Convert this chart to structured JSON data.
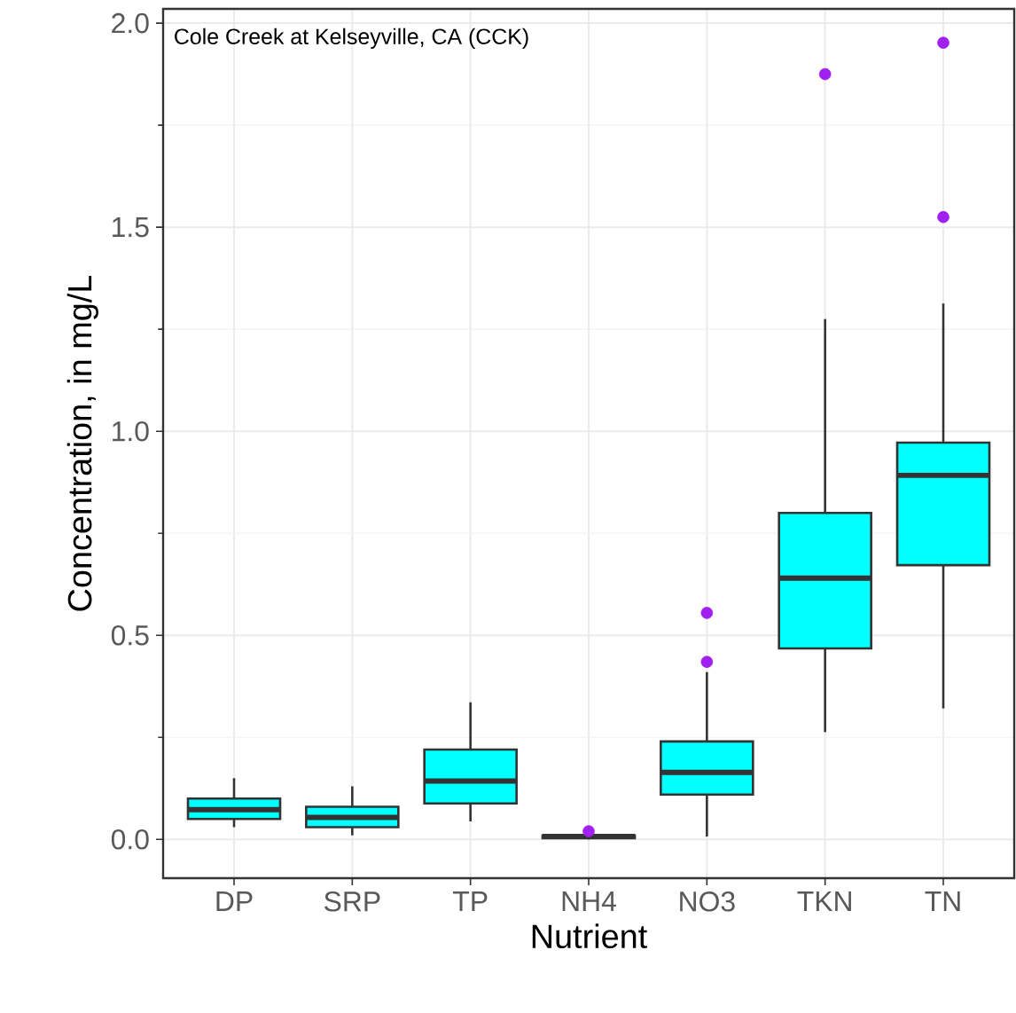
{
  "chart_data": {
    "type": "box",
    "title": "Cole Creek at Kelseyville, CA (CCK)",
    "xlabel": "Nutrient",
    "ylabel": "Concentration, in mg/L",
    "categories": [
      "DP",
      "SRP",
      "TP",
      "NH4",
      "NO3",
      "TKN",
      "TN"
    ],
    "series": [
      {
        "color": "#00ffff",
        "boxes": [
          {
            "low": 0.03,
            "q1": 0.05,
            "median": 0.073,
            "q3": 0.1,
            "high": 0.15
          },
          {
            "low": 0.01,
            "q1": 0.03,
            "median": 0.054,
            "q3": 0.08,
            "high": 0.13
          },
          {
            "low": 0.044,
            "q1": 0.088,
            "median": 0.143,
            "q3": 0.22,
            "high": 0.336
          },
          {
            "low": 0.0,
            "q1": 0.003,
            "median": 0.007,
            "q3": 0.01,
            "high": 0.012,
            "outliers": [
              0.02
            ]
          },
          {
            "low": 0.007,
            "q1": 0.11,
            "median": 0.164,
            "q3": 0.24,
            "high": 0.41,
            "outliers": [
              0.435,
              0.555
            ]
          },
          {
            "low": 0.263,
            "q1": 0.468,
            "median": 0.64,
            "q3": 0.8,
            "high": 1.275,
            "outliers": [
              1.875
            ]
          },
          {
            "low": 0.321,
            "q1": 0.672,
            "median": 0.892,
            "q3": 0.972,
            "high": 1.313,
            "outliers": [
              1.525,
              1.952
            ]
          }
        ]
      }
    ],
    "ylim": [
      -0.095,
      2.035
    ],
    "yticks": [
      {
        "value": 0,
        "label": "0.0"
      },
      {
        "value": 0.5,
        "label": "0.5"
      },
      {
        "value": 1,
        "label": "1.0"
      },
      {
        "value": 1.5,
        "label": "1.5"
      },
      {
        "value": 2,
        "label": "2.0"
      }
    ],
    "grid": true
  }
}
